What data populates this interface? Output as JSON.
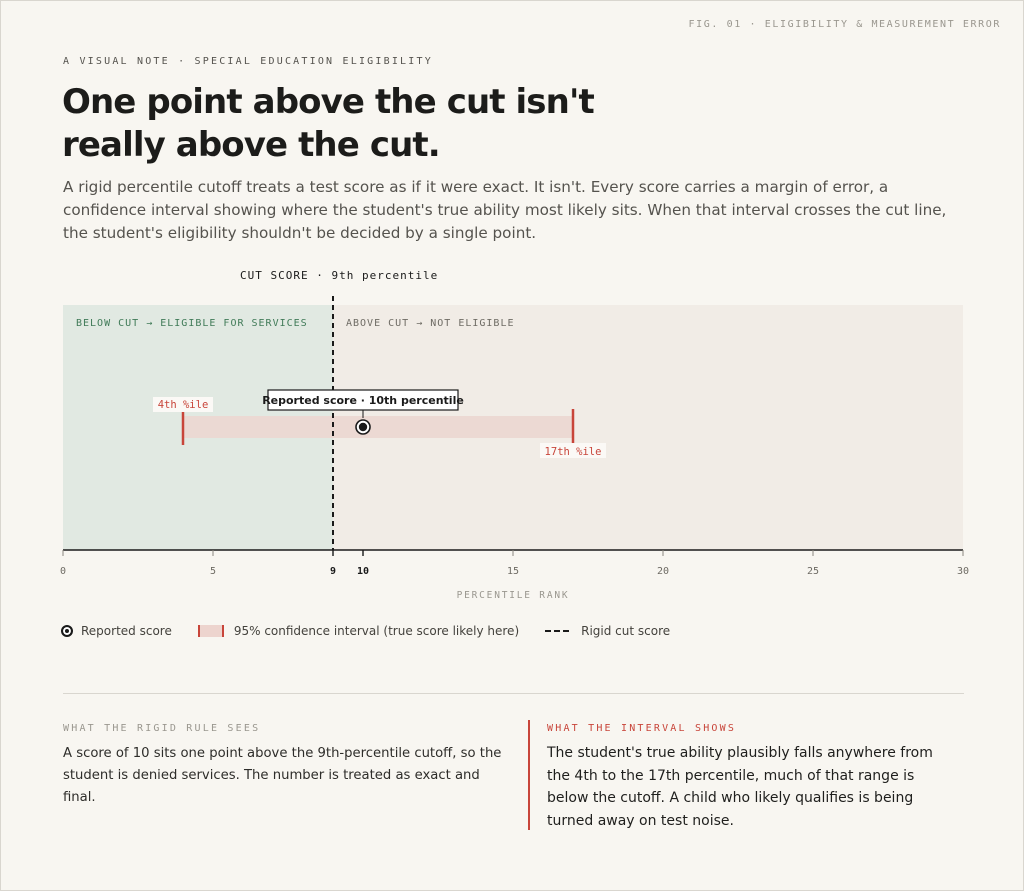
{
  "figure_tag": "FIG. 01 · ELIGIBILITY & MEASUREMENT ERROR",
  "eyebrow": "A VISUAL NOTE · SPECIAL EDUCATION ELIGIBILITY",
  "headline": "One point above the cut isn't really above the cut.",
  "intro": "A rigid percentile cutoff treats a test score as if it were exact. It isn't. Every score carries a margin of error, a confidence interval showing where the student's true ability most likely sits. When that interval crosses the cut line, the student's eligibility shouldn't be decided by a single point.",
  "colors": {
    "eligible_zone": "#e1e9e2",
    "not_eligible_zone": "#f1ece6",
    "eligible_text": "#3f7a57",
    "interval_fill": "#ecd7d1",
    "interval_accent": "#c8453a",
    "ink": "#1a1a1a"
  },
  "chart_data": {
    "type": "interval",
    "xlabel": "PERCENTILE RANK",
    "xlim": [
      0,
      30
    ],
    "xticks": [
      0,
      5,
      9,
      10,
      15,
      20,
      25,
      30
    ],
    "cut_score": 9,
    "cut_label": "CUT SCORE · 9th percentile",
    "regions": [
      {
        "label": "BELOW CUT → ELIGIBLE FOR SERVICES",
        "from": 0,
        "to": 9
      },
      {
        "label": "ABOVE CUT → NOT ELIGIBLE",
        "from": 9,
        "to": 30
      }
    ],
    "reported_score": 10,
    "reported_label": "Reported score · 10th percentile",
    "interval": {
      "low": 4,
      "high": 17,
      "low_label": "4th %ile",
      "high_label": "17th %ile"
    },
    "grid": false
  },
  "legend": {
    "reported": "Reported score",
    "interval": "95% confidence interval (true score likely here)",
    "cut": "Rigid cut score"
  },
  "rigid_rule": {
    "label": "WHAT THE RIGID RULE SEES",
    "text": "A score of 10 sits one point above the 9th-percentile cutoff, so the student is denied services. The number is treated as exact and final."
  },
  "interval_shows": {
    "label": "WHAT THE INTERVAL SHOWS",
    "text": "The student's true ability plausibly falls anywhere from the 4th to the 17th percentile, much of that range is below the cutoff. A child who likely qualifies is being turned away on test noise."
  }
}
